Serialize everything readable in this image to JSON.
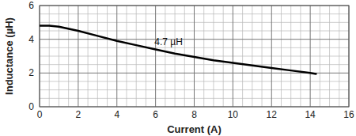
{
  "chart_data": {
    "type": "line",
    "x_label": "Current (A)",
    "y_label": "Inductance (µH)",
    "x": [
      0,
      0.5,
      1,
      2,
      3,
      4,
      5,
      6,
      7,
      8,
      9,
      10,
      11,
      12,
      13,
      14,
      14.3
    ],
    "series": [
      {
        "name": "4.7 µH",
        "color": "#000000",
        "values": [
          4.8,
          4.8,
          4.75,
          4.5,
          4.2,
          3.9,
          3.65,
          3.4,
          3.15,
          2.95,
          2.75,
          2.6,
          2.45,
          2.3,
          2.15,
          2.0,
          1.95
        ]
      }
    ],
    "xlim": [
      0,
      16
    ],
    "xticks": [
      0,
      2,
      4,
      6,
      8,
      10,
      12,
      14,
      16
    ],
    "ylim": [
      0,
      6
    ],
    "yticks": [
      0,
      2,
      4,
      6
    ],
    "grid": true
  }
}
